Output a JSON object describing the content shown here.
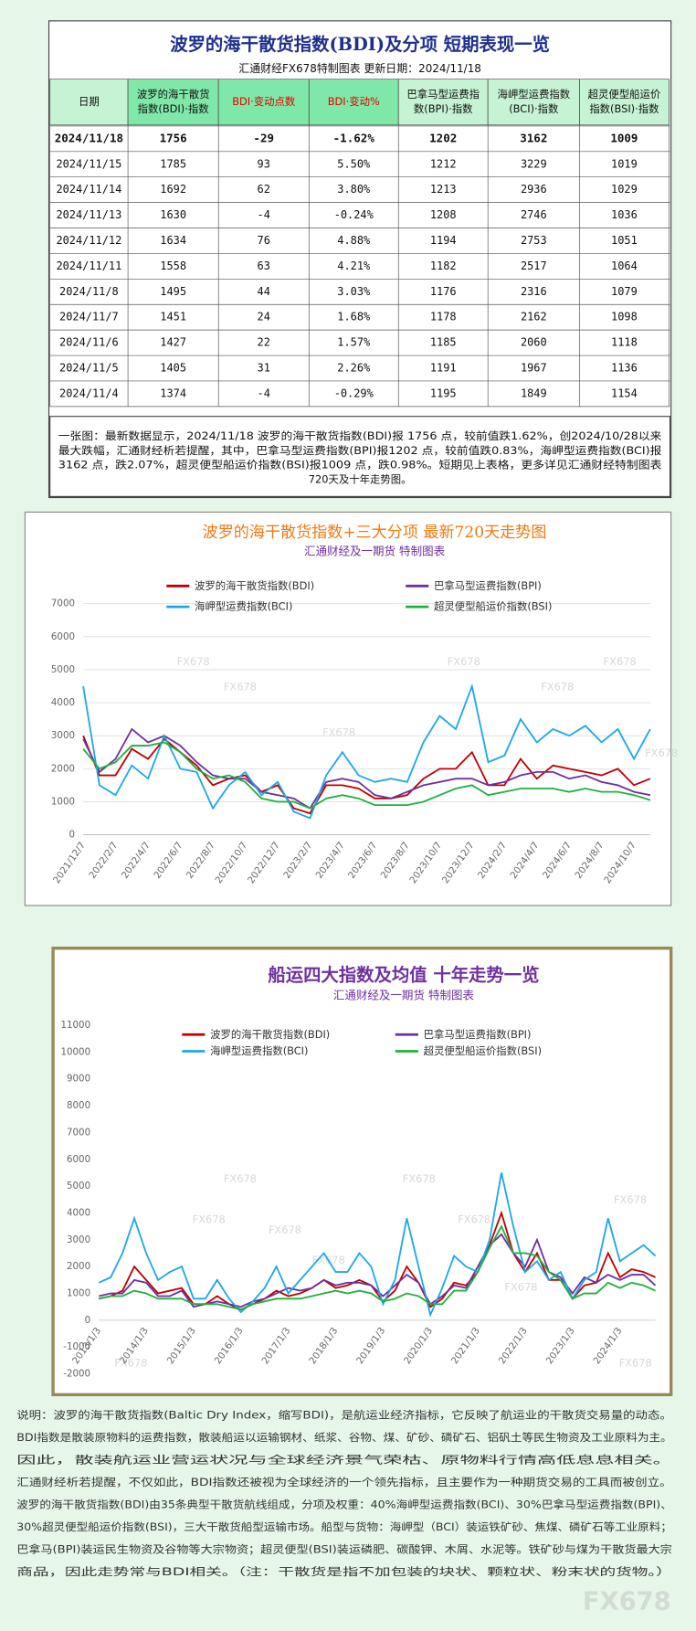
{
  "table_panel": {
    "title": "波罗的海干散货指数(BDI)及分项  短期表现一览",
    "subtitle": "汇通财经FX678特制图表      更新日期：2024/11/18",
    "header": [
      [
        "日期"
      ],
      [
        "波罗的海干散货",
        "指数(BDI)·指数"
      ],
      [
        "BDI·变动点数"
      ],
      [
        "BDI·变动%"
      ],
      [
        "巴拿马型运费指",
        "数(BPI)·指数"
      ],
      [
        "海岬型运费指数",
        "(BCI)·指数"
      ],
      [
        "超灵便型船运价",
        "指数(BSI)·指数"
      ]
    ],
    "rows": [
      [
        "2024/11/18",
        1756,
        -29,
        "-1.62%",
        1202,
        3162,
        1009
      ],
      [
        "2024/11/15",
        1785,
        93,
        "5.50%",
        1212,
        3229,
        1019
      ],
      [
        "2024/11/14",
        1692,
        62,
        "3.80%",
        1213,
        2936,
        1029
      ],
      [
        "2024/11/13",
        1630,
        -4,
        "-0.24%",
        1208,
        2746,
        1036
      ],
      [
        "2024/11/12",
        1634,
        76,
        "4.88%",
        1194,
        2753,
        1051
      ],
      [
        "2024/11/11",
        1558,
        63,
        "4.21%",
        1182,
        2517,
        1064
      ],
      [
        "2024/11/8",
        1495,
        44,
        "3.03%",
        1176,
        2316,
        1079
      ],
      [
        "2024/11/7",
        1451,
        24,
        "1.68%",
        1178,
        2162,
        1098
      ],
      [
        "2024/11/6",
        1427,
        22,
        "1.57%",
        1185,
        2060,
        1118
      ],
      [
        "2024/11/5",
        1405,
        31,
        "2.26%",
        1191,
        1967,
        1136
      ],
      [
        "2024/11/4",
        1374,
        -4,
        "-0.29%",
        1195,
        1849,
        1154
      ]
    ],
    "note": [
      "一张图：最新数据显示，2024/11/18 波罗的海干散货指数(BDI)报 1756 点，较前值跌1.62%，创2024/10/28以来",
      "最大跌幅，汇通财经析若提醒，其中，巴拿马型运费指数(BPI)报1202 点，较前值跌0.83%，海岬型运费指数(BCI)报",
      "3162 点，跌2.07%，超灵便型船运价指数(BSI)报1009 点，跌0.98%。短期见上表格，更多详见汇通财经特制图表",
      "720天及十年走势图。"
    ]
  },
  "chart_data": [
    {
      "type": "line",
      "title": "波罗的海干散货指数+三大分项  最新720天走势图",
      "subtitle": "汇通财经及一期货  特制图表",
      "categories": [
        "2021/12/7",
        null,
        "2022/2/7",
        null,
        "2022/4/7",
        null,
        "2022/6/7",
        null,
        "2022/8/7",
        null,
        "2022/10/7",
        null,
        "2022/12/7",
        null,
        "2023/2/7",
        null,
        "2023/4/7",
        null,
        "2023/6/7",
        null,
        "2023/8/7",
        null,
        "2023/10/7",
        null,
        "2023/12/7",
        null,
        "2024/2/7",
        null,
        "2024/4/7",
        null,
        "2024/6/7",
        null,
        "2024/8/7",
        null,
        "2024/10/7",
        null
      ],
      "series": [
        {
          "name": "波罗的海干散货指数(BDI)",
          "color": "#c00000",
          "values": [
            3000,
            1800,
            1800,
            2600,
            2300,
            2900,
            2500,
            2100,
            1500,
            1700,
            1800,
            1300,
            1500,
            800,
            650,
            1500,
            1500,
            1400,
            1100,
            1100,
            1200,
            1700,
            2000,
            2000,
            2500,
            1500,
            1500,
            2300,
            1700,
            2100,
            2000,
            1900,
            1800,
            2000,
            1500,
            1700
          ]
        },
        {
          "name": "巴拿马型运费指数(BPI)",
          "color": "#7030a0",
          "values": [
            2900,
            1900,
            2300,
            3200,
            2800,
            3000,
            2700,
            2200,
            1800,
            1700,
            1700,
            1300,
            1200,
            1100,
            800,
            1600,
            1700,
            1600,
            1200,
            1100,
            1300,
            1500,
            1600,
            1700,
            1700,
            1500,
            1600,
            1800,
            1900,
            1900,
            1700,
            1800,
            1600,
            1500,
            1300,
            1200
          ]
        },
        {
          "name": "海岬型运费指数(BCI)",
          "color": "#1ea7e8",
          "values": [
            4500,
            1500,
            1200,
            2100,
            1700,
            3000,
            2000,
            1900,
            800,
            1500,
            1900,
            1200,
            1600,
            700,
            500,
            1800,
            2500,
            1800,
            1600,
            1700,
            1600,
            2800,
            3600,
            3200,
            4500,
            2200,
            2400,
            3500,
            2800,
            3200,
            3000,
            3300,
            2800,
            3200,
            2300,
            3200
          ]
        },
        {
          "name": "超灵便型船运价指数(BSI)",
          "color": "#20b040",
          "values": [
            2600,
            2000,
            2200,
            2700,
            2700,
            2800,
            2500,
            2000,
            1700,
            1800,
            1600,
            1100,
            1000,
            1000,
            800,
            1100,
            1200,
            1100,
            900,
            900,
            900,
            1000,
            1200,
            1400,
            1500,
            1200,
            1300,
            1400,
            1400,
            1400,
            1300,
            1400,
            1300,
            1300,
            1200,
            1050
          ]
        }
      ],
      "ylim": [
        0,
        7000
      ],
      "yticks": [
        0,
        1000,
        2000,
        3000,
        4000,
        5000,
        6000,
        7000
      ],
      "grid": true
    },
    {
      "type": "line",
      "title": "船运四大指数及均值 十年走势一览",
      "subtitle": "汇通财经及一期货 特制图表",
      "categories": [
        "2013/1/3",
        null,
        null,
        null,
        "2014/1/3",
        null,
        null,
        null,
        "2015/1/3",
        null,
        null,
        null,
        "2016/1/3",
        null,
        null,
        null,
        "2017/1/3",
        null,
        null,
        null,
        "2018/1/3",
        null,
        null,
        null,
        "2019/1/3",
        null,
        null,
        null,
        "2020/1/3",
        null,
        null,
        null,
        "2021/1/3",
        null,
        null,
        null,
        "2022/1/3",
        null,
        null,
        null,
        "2023/1/3",
        null,
        null,
        null,
        "2024/1/3",
        null,
        null,
        null
      ],
      "series": [
        {
          "name": "波罗的海干散货指数(BDI)",
          "color": "#c00000",
          "values": [
            800,
            900,
            1100,
            2000,
            1500,
            1000,
            1100,
            1200,
            600,
            600,
            900,
            600,
            400,
            600,
            800,
            1100,
            900,
            1000,
            1200,
            1500,
            1200,
            1300,
            1500,
            1300,
            700,
            1100,
            2000,
            1400,
            500,
            800,
            1400,
            1300,
            1800,
            2800,
            4000,
            2500,
            1800,
            2500,
            1500,
            1500,
            800,
            1300,
            1400,
            2500,
            1600,
            1900,
            1800,
            1600
          ]
        },
        {
          "name": "巴拿马型运费指数(BPI)",
          "color": "#7030a0",
          "values": [
            900,
            1000,
            1000,
            1500,
            1400,
            900,
            900,
            1100,
            500,
            600,
            700,
            600,
            500,
            700,
            800,
            1000,
            1200,
            1100,
            1200,
            1500,
            1300,
            1400,
            1400,
            1300,
            900,
            1300,
            1700,
            1400,
            600,
            900,
            1300,
            1200,
            2000,
            2800,
            3200,
            2500,
            2000,
            3000,
            1800,
            1600,
            1000,
            1600,
            1400,
            1700,
            1500,
            1700,
            1700,
            1300
          ]
        },
        {
          "name": "海岬型运费指数(BCI)",
          "color": "#1ea7e8",
          "values": [
            1400,
            1600,
            2500,
            3800,
            2500,
            1500,
            1800,
            2000,
            800,
            800,
            1500,
            800,
            300,
            700,
            1200,
            2000,
            1000,
            1500,
            2000,
            2500,
            1800,
            1800,
            2500,
            2000,
            600,
            1500,
            3800,
            2000,
            200,
            1200,
            2400,
            2000,
            1800,
            3000,
            5500,
            3500,
            1800,
            2200,
            1500,
            1800,
            800,
            1500,
            1800,
            3800,
            2200,
            2500,
            2800,
            2400
          ]
        },
        {
          "name": "超灵便型船运价指数(BSI)",
          "color": "#20b040",
          "values": [
            800,
            900,
            900,
            1100,
            1000,
            800,
            800,
            800,
            600,
            600,
            600,
            500,
            400,
            600,
            700,
            800,
            800,
            800,
            900,
            1000,
            1100,
            1000,
            1100,
            1000,
            700,
            800,
            1000,
            900,
            600,
            600,
            1100,
            1100,
            1800,
            2700,
            3500,
            2500,
            2500,
            2400,
            1800,
            1500,
            800,
            1000,
            1000,
            1400,
            1200,
            1400,
            1300,
            1100
          ]
        }
      ],
      "ylim": [
        -2000,
        11000
      ],
      "yticks": [
        -2000,
        -1000,
        0,
        1000,
        2000,
        3000,
        4000,
        5000,
        6000,
        7000,
        8000,
        9000,
        10000,
        11000
      ],
      "grid": false
    }
  ],
  "notes": [
    "说明：波罗的海干散货指数(Baltic Dry Index，缩写BDI)，是航运业经济指标，它反映了航运业的干散货交易量的动态。",
    "BDI指数是散装原物料的运费指数，散装船运以运输钢材、纸浆、谷物、煤、矿砂、磷矿石、铝矾土等民生物资及工业原料为主。",
    "因此，散装航运业营运状况与全球经济景气荣枯、原物料行情高低息息相关。",
    "汇通财经析若提醒，不仅如此，BDI指数还被视为全球经济的一个领先指标，且主要作为一种期货交易的工具而被创立。",
    "波罗的海干散货指数(BDI)由35条典型干散货航线组成，分项及权重：40%海岬型运费指数(BCI)、30%巴拿马型运费指数(BPI)、",
    "30%超灵便型船运价指数(BSI)，三大干散货船型运输市场。船型与货物：海岬型（BCI）装运铁矿砂、焦煤、磷矿石等工业原料；",
    "巴拿马(BPI)装运民生物资及谷物等大宗物资；超灵便型(BSI)装运磷肥、碳酸钾、木屑、水泥等。铁矿砂与煤为干散货最大宗",
    "商品，因此走势常与BDI相关。（注：干散货是指不加包装的块状、颗粒状、粉末状的货物。）"
  ],
  "watermark": "FX678"
}
